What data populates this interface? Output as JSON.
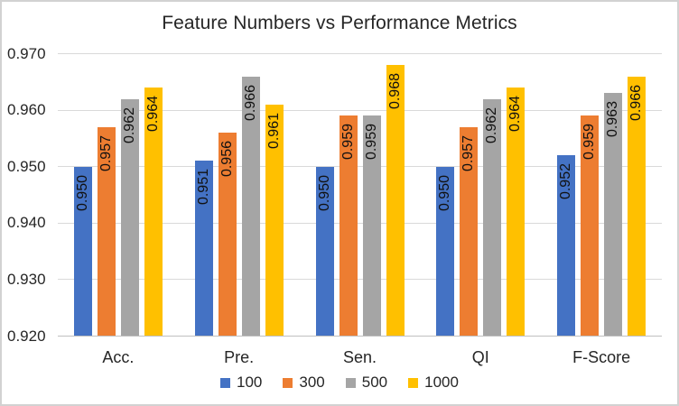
{
  "chart_data": {
    "type": "bar",
    "title": "Feature Numbers vs Performance Metrics",
    "categories": [
      "Acc.",
      "Pre.",
      "Sen.",
      "QI",
      "F-Score"
    ],
    "series": [
      {
        "name": "100",
        "color": "#4472C4",
        "values": [
          0.95,
          0.951,
          0.95,
          0.95,
          0.952
        ],
        "labels": [
          "0.950",
          "0.951",
          "0.950",
          "0.950",
          "0.952"
        ]
      },
      {
        "name": "300",
        "color": "#ED7D31",
        "values": [
          0.957,
          0.956,
          0.959,
          0.957,
          0.959
        ],
        "labels": [
          "0.957",
          "0.956",
          "0.959",
          "0.957",
          "0.959"
        ]
      },
      {
        "name": "500",
        "color": "#A5A5A5",
        "values": [
          0.962,
          0.966,
          0.959,
          0.962,
          0.963
        ],
        "labels": [
          "0.962",
          "0.966",
          "0.959",
          "0.962",
          "0.963"
        ]
      },
      {
        "name": "1000",
        "color": "#FFC000",
        "values": [
          0.964,
          0.961,
          0.968,
          0.964,
          0.966
        ],
        "labels": [
          "0.964",
          "0.961",
          "0.968",
          "0.964",
          "0.966"
        ]
      }
    ],
    "y_axis": {
      "min": 0.92,
      "max": 0.97,
      "step": 0.01,
      "tick_labels": [
        "0.920",
        "0.930",
        "0.940",
        "0.950",
        "0.960",
        "0.970"
      ]
    },
    "xlabel": "",
    "ylabel": "",
    "grid": true,
    "data_labels": {
      "position": "inside-end",
      "rotation_deg": 90
    },
    "legend": {
      "position": "bottom",
      "entries": [
        "100",
        "300",
        "500",
        "1000"
      ]
    },
    "colors": {
      "gridline": "#D9D9D9",
      "axis_line": "#BFBFBF",
      "frame_border": "#D2D2D2",
      "text": "#262626",
      "data_label_text": "#111111"
    }
  }
}
